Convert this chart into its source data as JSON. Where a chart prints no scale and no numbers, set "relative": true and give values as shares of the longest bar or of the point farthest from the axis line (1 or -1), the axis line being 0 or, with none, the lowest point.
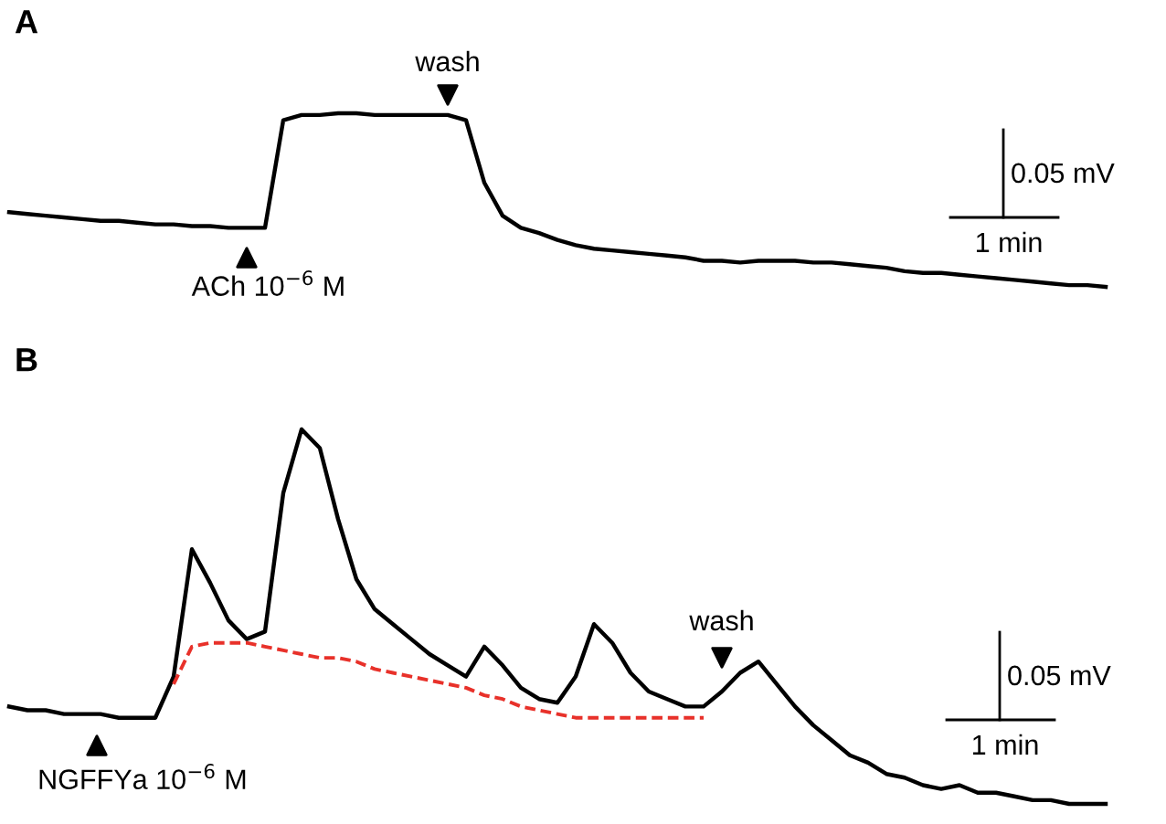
{
  "chart_data": [
    {
      "type": "line",
      "title": "A",
      "relative": true,
      "tick_labels": false,
      "categories": [
        null,
        null,
        null,
        null,
        null,
        null,
        null,
        null,
        null,
        null,
        null,
        null,
        null,
        null,
        null,
        null,
        null,
        null,
        null,
        null,
        null,
        null,
        null,
        null,
        null,
        null,
        null,
        null,
        null,
        null,
        null,
        null,
        null,
        null,
        null,
        null,
        null,
        null,
        null,
        null,
        null,
        null,
        null,
        null,
        null,
        null,
        null,
        null,
        null,
        null,
        null,
        null,
        null,
        null,
        null,
        null,
        null,
        null,
        null,
        null,
        null
      ],
      "series": [
        {
          "color": "#000000",
          "values": [
            0.43,
            0.42,
            0.41,
            0.4,
            0.39,
            0.38,
            0.38,
            0.37,
            0.36,
            0.36,
            0.35,
            0.35,
            0.34,
            0.34,
            0.34,
            0.96,
            0.99,
            0.99,
            1,
            1,
            0.99,
            0.99,
            0.99,
            0.99,
            0.99,
            0.96,
            0.6,
            0.41,
            0.34,
            0.31,
            0.27,
            0.24,
            0.22,
            0.21,
            0.2,
            0.19,
            0.18,
            0.17,
            0.15,
            0.15,
            0.14,
            0.15,
            0.15,
            0.15,
            0.14,
            0.14,
            0.13,
            0.12,
            0.11,
            0.09,
            0.08,
            0.08,
            0.07,
            0.06,
            0.05,
            0.04,
            0.03,
            0.02,
            0.01,
            0.01,
            0
          ]
        }
      ],
      "annotations": [
        "wash",
        "ACh 10$^{−6}$ M",
        "0.05 mV",
        "1 min"
      ]
    },
    {
      "type": "line",
      "title": "B",
      "relative": true,
      "tick_labels": false,
      "categories": [
        null,
        null,
        null,
        null,
        null,
        null,
        null,
        null,
        null,
        null,
        null,
        null,
        null,
        null,
        null,
        null,
        null,
        null,
        null,
        null,
        null,
        null,
        null,
        null,
        null,
        null,
        null,
        null,
        null,
        null,
        null,
        null,
        null,
        null,
        null,
        null,
        null,
        null,
        null,
        null,
        null,
        null,
        null,
        null,
        null,
        null,
        null,
        null,
        null,
        null,
        null,
        null,
        null,
        null,
        null,
        null,
        null,
        null,
        null,
        null,
        null
      ],
      "series": [
        {
          "color": "#000000",
          "values": [
            0.26,
            0.25,
            0.25,
            0.24,
            0.24,
            0.24,
            0.23,
            0.23,
            0.23,
            0.34,
            0.68,
            0.59,
            0.49,
            0.44,
            0.46,
            0.83,
            1,
            0.95,
            0.76,
            0.6,
            0.52,
            0.48,
            0.44,
            0.4,
            0.37,
            0.34,
            0.42,
            0.37,
            0.31,
            0.28,
            0.27,
            0.34,
            0.48,
            0.43,
            0.35,
            0.3,
            0.28,
            0.26,
            0.26,
            0.3,
            0.35,
            0.38,
            0.32,
            0.26,
            0.21,
            0.17,
            0.13,
            0.11,
            0.08,
            0.07,
            0.05,
            0.04,
            0.05,
            0.03,
            0.03,
            0.02,
            0.01,
            0.01,
            0,
            0,
            0
          ]
        },
        {
          "color": "#e8312a",
          "line_style": "dashed",
          "values": [
            null,
            null,
            null,
            null,
            null,
            null,
            null,
            null,
            null,
            0.32,
            0.42,
            0.43,
            0.43,
            0.43,
            0.42,
            0.41,
            0.4,
            0.39,
            0.39,
            0.38,
            0.36,
            0.35,
            0.34,
            0.33,
            0.32,
            0.31,
            0.29,
            0.28,
            0.26,
            0.25,
            0.24,
            0.23,
            0.23,
            0.23,
            0.23,
            0.23,
            0.23,
            0.23,
            0.23,
            null,
            null,
            null,
            null,
            null,
            null,
            null,
            null,
            null,
            null,
            null,
            null,
            null,
            null,
            null,
            null,
            null,
            null,
            null,
            null,
            null,
            null
          ]
        }
      ],
      "annotations": [
        "NGFFYa 10$^{−6}$ M",
        "wash",
        "0.05 mV",
        "1 min"
      ]
    }
  ]
}
